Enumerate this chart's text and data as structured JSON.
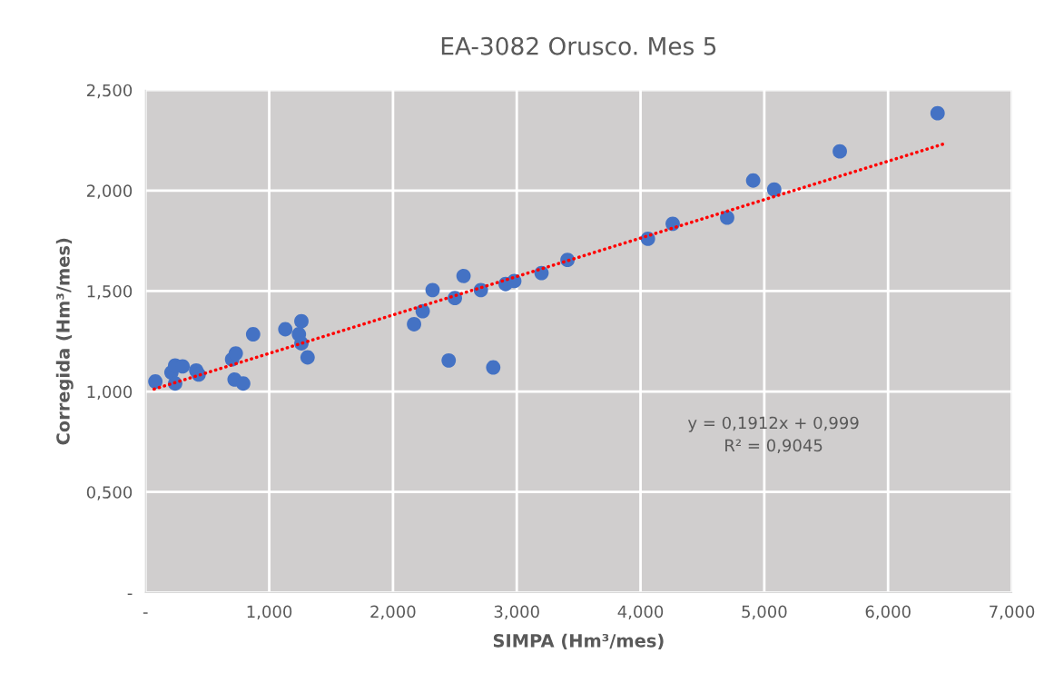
{
  "chart_data": {
    "type": "scatter",
    "title": "EA-3082 Orusco. Mes 5",
    "xlabel": "SIMPA (Hm³/mes)",
    "ylabel": "Corregida (Hm³/mes)",
    "xlim": [
      0,
      7
    ],
    "ylim": [
      0,
      2.5
    ],
    "xticks": [
      {
        "value": 0,
        "label": "-"
      },
      {
        "value": 1,
        "label": "1,000"
      },
      {
        "value": 2,
        "label": "2,000"
      },
      {
        "value": 3,
        "label": "3,000"
      },
      {
        "value": 4,
        "label": "4,000"
      },
      {
        "value": 5,
        "label": "5,000"
      },
      {
        "value": 6,
        "label": "6,000"
      },
      {
        "value": 7,
        "label": "7,000"
      }
    ],
    "yticks": [
      {
        "value": 0,
        "label": "-"
      },
      {
        "value": 0.5,
        "label": "0,500"
      },
      {
        "value": 1,
        "label": "1,000"
      },
      {
        "value": 1.5,
        "label": "1,500"
      },
      {
        "value": 2,
        "label": "2,000"
      },
      {
        "value": 2.5,
        "label": "2,500"
      }
    ],
    "grid": true,
    "legend": false,
    "marker": "circle",
    "series": [
      {
        "color": "#4472c4",
        "x": [
          0.08,
          0.21,
          0.24,
          0.24,
          0.3,
          0.41,
          0.43,
          0.7,
          0.73,
          0.72,
          0.79,
          0.87,
          1.13,
          1.24,
          1.26,
          1.26,
          1.31,
          2.17,
          2.24,
          2.32,
          2.45,
          2.5,
          2.57,
          2.71,
          2.81,
          2.91,
          2.98,
          3.2,
          3.41,
          4.06,
          4.26,
          4.7,
          4.91,
          5.08,
          5.61,
          6.4
        ],
        "values": [
          1.05,
          1.095,
          1.13,
          1.04,
          1.125,
          1.105,
          1.085,
          1.16,
          1.19,
          1.06,
          1.04,
          1.285,
          1.31,
          1.285,
          1.35,
          1.24,
          1.17,
          1.335,
          1.4,
          1.505,
          1.155,
          1.465,
          1.575,
          1.505,
          1.12,
          1.535,
          1.55,
          1.59,
          1.655,
          1.76,
          1.835,
          1.865,
          2.05,
          2.005,
          2.195,
          2.385
        ]
      },
      {
        "type": "line",
        "color": "#ff0000",
        "line_style": "dotted",
        "marker": "none",
        "x": [
          0.07,
          6.45
        ],
        "values": [
          1.012,
          2.232
        ]
      }
    ],
    "annotations": [
      "y = 0,1912x + 0,999",
      "R² = 0,9045"
    ]
  }
}
